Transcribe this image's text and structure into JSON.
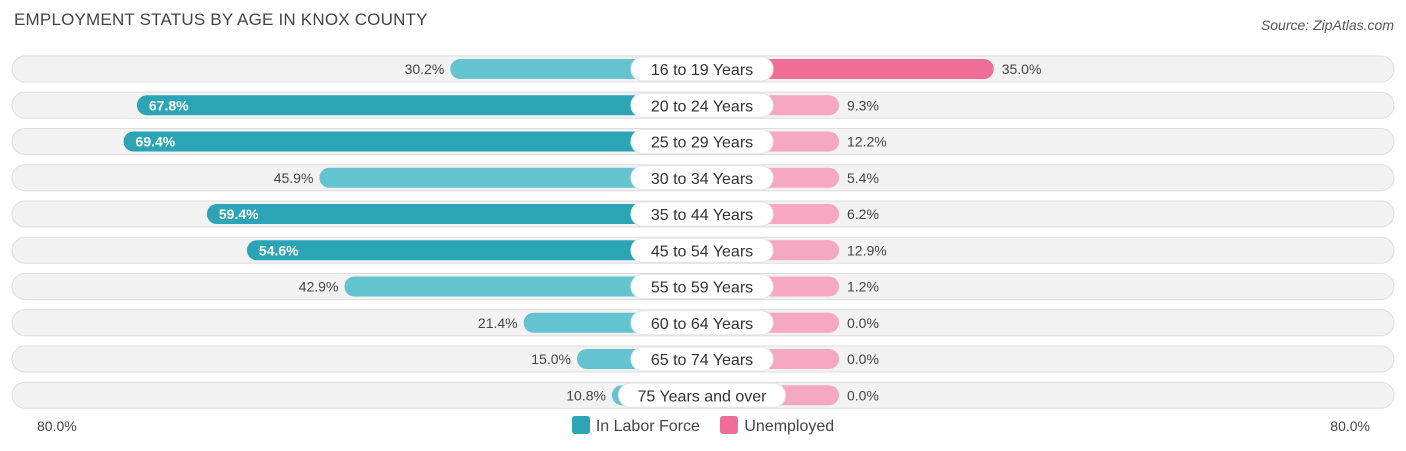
{
  "title": "EMPLOYMENT STATUS BY AGE IN KNOX COUNTY",
  "source": "Source: ZipAtlas.com",
  "axis": {
    "left_label": "80.0%",
    "right_label": "80.0%"
  },
  "legend": [
    {
      "label": "In Labor Force",
      "color": "#2ba4b6"
    },
    {
      "label": "Unemployed",
      "color": "#ef6e98"
    }
  ],
  "chart_data": {
    "type": "bar",
    "orientation": "diverging-horizontal",
    "title": "EMPLOYMENT STATUS BY AGE IN KNOX COUNTY",
    "xlim": [
      -80,
      80
    ],
    "categories": [
      "16 to 19 Years",
      "20 to 24 Years",
      "25 to 29 Years",
      "30 to 34 Years",
      "35 to 44 Years",
      "45 to 54 Years",
      "55 to 59 Years",
      "60 to 64 Years",
      "65 to 74 Years",
      "75 Years and over"
    ],
    "series": [
      {
        "name": "In Labor Force",
        "color": "#2ba4b6",
        "values": [
          30.2,
          67.8,
          69.4,
          45.9,
          59.4,
          54.6,
          42.9,
          21.4,
          15.0,
          10.8
        ],
        "labels": [
          "30.2%",
          "67.8%",
          "69.4%",
          "45.9%",
          "59.4%",
          "54.6%",
          "42.9%",
          "21.4%",
          "15.0%",
          "10.8%"
        ]
      },
      {
        "name": "Unemployed",
        "color": "#ef6e98",
        "values": [
          35.0,
          9.3,
          12.2,
          5.4,
          6.2,
          12.9,
          1.2,
          0.0,
          0.0,
          0.0
        ],
        "labels": [
          "35.0%",
          "9.3%",
          "12.2%",
          "5.4%",
          "6.2%",
          "12.9%",
          "1.2%",
          "0.0%",
          "0.0%",
          "0.0%"
        ]
      }
    ]
  }
}
